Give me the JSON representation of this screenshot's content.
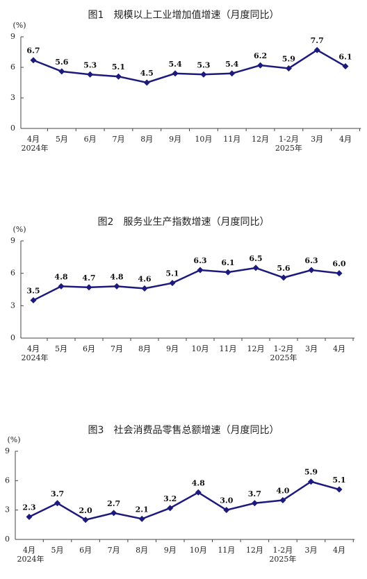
{
  "chart_data": [
    {
      "type": "line",
      "title": "图1　规模以上工业增加值增速（月度同比）",
      "y_unit": "(%)",
      "categories": [
        "4月",
        "5月",
        "6月",
        "7月",
        "8月",
        "9月",
        "10月",
        "11月",
        "12月",
        "1-2月",
        "3月",
        "4月"
      ],
      "subcategories": [
        "2024年",
        null,
        null,
        null,
        null,
        null,
        null,
        null,
        null,
        "2025年",
        null,
        null
      ],
      "values": [
        6.7,
        5.6,
        5.3,
        5.1,
        4.5,
        5.4,
        5.3,
        5.4,
        6.2,
        5.9,
        7.7,
        6.1
      ],
      "value_labels": [
        "6.7",
        "5.6",
        "5.3",
        "5.1",
        "4.5",
        "5.4",
        "5.3",
        "5.4",
        "6.2",
        "5.9",
        "7.7",
        "6.1"
      ],
      "color": "#1c1a7c",
      "ylim": [
        0,
        9
      ],
      "yticks": [
        0,
        3,
        6,
        9
      ]
    },
    {
      "type": "line",
      "title": "图2　服务业生产指数增速（月度同比）",
      "y_unit": "(%)",
      "categories": [
        "4月",
        "5月",
        "6月",
        "7月",
        "8月",
        "9月",
        "10月",
        "11月",
        "12月",
        "1-2月",
        "3月",
        "4月"
      ],
      "subcategories": [
        "2024年",
        null,
        null,
        null,
        null,
        null,
        null,
        null,
        null,
        "2025年",
        null,
        null
      ],
      "values": [
        3.5,
        4.8,
        4.7,
        4.8,
        4.6,
        5.1,
        6.3,
        6.1,
        6.5,
        5.6,
        6.3,
        6.0
      ],
      "value_labels": [
        "3.5",
        "4.8",
        "4.7",
        "4.8",
        "4.6",
        "5.1",
        "6.3",
        "6.1",
        "6.5",
        "5.6",
        "6.3",
        "6.0"
      ],
      "color": "#1c1a7c",
      "ylim": [
        0,
        9
      ],
      "yticks": [
        0,
        3,
        6,
        9
      ]
    },
    {
      "type": "line",
      "title": "图3　社会消费品零售总额增速（月度同比）",
      "y_unit": "(%)",
      "categories": [
        "4月",
        "5月",
        "6月",
        "7月",
        "8月",
        "9月",
        "10月",
        "11月",
        "12月",
        "1-2月",
        "3月",
        "4月"
      ],
      "subcategories": [
        "2024年",
        null,
        null,
        null,
        null,
        null,
        null,
        null,
        null,
        "2025年",
        null,
        null
      ],
      "values": [
        2.3,
        3.7,
        2.0,
        2.7,
        2.1,
        3.2,
        4.8,
        3.0,
        3.7,
        4.0,
        5.9,
        5.1
      ],
      "value_labels": [
        "2.3",
        "3.7",
        "2.0",
        "2.7",
        "2.1",
        "3.2",
        "4.8",
        "3.0",
        "3.7",
        "4.0",
        "5.9",
        "5.1"
      ],
      "color": "#1c1a7c",
      "ylim": [
        0,
        9
      ],
      "yticks": [
        0,
        3,
        6,
        9
      ]
    }
  ]
}
